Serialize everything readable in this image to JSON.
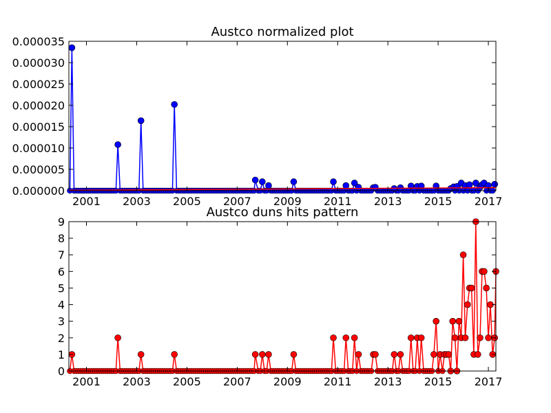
{
  "chart_data": [
    {
      "type": "line",
      "title": "Austco normalized plot",
      "xlabel": "",
      "ylabel": "",
      "xlim": [
        2000.3,
        2017.3
      ],
      "ylim": [
        0,
        3.5e-05
      ],
      "x_ticks": [
        "2001",
        "2003",
        "2005",
        "2007",
        "2009",
        "2011",
        "2013",
        "2015",
        "2017"
      ],
      "y_ticks": [
        "0.000000",
        "0.000005",
        "0.000010",
        "0.000015",
        "0.000020",
        "0.000025",
        "0.000030",
        "0.000035"
      ],
      "grid": false,
      "series": [
        {
          "color": "#0000ff",
          "marker": "circle",
          "points": [
            [
              2000.42,
              3.35e-05
            ],
            [
              2002.25,
              1.08e-05
            ],
            [
              2003.17,
              1.64e-05
            ],
            [
              2004.5,
              2.02e-05
            ],
            [
              2007.72,
              2.5e-06
            ],
            [
              2008.0,
              2.1e-06
            ],
            [
              2008.25,
              1.2e-06
            ],
            [
              2009.25,
              2.1e-06
            ],
            [
              2010.83,
              2.1e-06
            ],
            [
              2011.33,
              1.2e-06
            ],
            [
              2011.67,
              1.8e-06
            ],
            [
              2011.83,
              8e-07
            ],
            [
              2012.42,
              7e-07
            ],
            [
              2012.5,
              8e-07
            ],
            [
              2013.25,
              5e-07
            ],
            [
              2013.5,
              7e-07
            ],
            [
              2013.92,
              1.1e-06
            ],
            [
              2014.17,
              1e-06
            ],
            [
              2014.33,
              1.1e-06
            ],
            [
              2014.92,
              1.1e-06
            ],
            [
              2015.5,
              5e-07
            ],
            [
              2015.62,
              9e-07
            ],
            [
              2015.75,
              1e-06
            ],
            [
              2015.92,
              1.8e-06
            ],
            [
              2016.08,
              1.2e-06
            ],
            [
              2016.25,
              1.4e-06
            ],
            [
              2016.5,
              1.8e-06
            ],
            [
              2016.67,
              8e-07
            ],
            [
              2016.75,
              1.4e-06
            ],
            [
              2016.83,
              1.8e-06
            ],
            [
              2017.0,
              1.2e-06
            ],
            [
              2017.25,
              1.5e-06
            ]
          ]
        },
        {
          "color": "#ff0000",
          "marker": "none",
          "points": [
            [
              2000.3,
              1e-07
            ],
            [
              2017.3,
              7e-07
            ]
          ]
        }
      ]
    },
    {
      "type": "line",
      "title": "Austco duns hits pattern",
      "xlabel": "",
      "ylabel": "",
      "xlim": [
        2000.3,
        2017.3
      ],
      "ylim": [
        0,
        9
      ],
      "x_ticks": [
        "2001",
        "2003",
        "2005",
        "2007",
        "2009",
        "2011",
        "2013",
        "2015",
        "2017"
      ],
      "y_ticks": [
        "0",
        "1",
        "2",
        "3",
        "4",
        "5",
        "6",
        "7",
        "8",
        "9"
      ],
      "grid": false,
      "series": [
        {
          "color": "#ff0000",
          "marker": "circle",
          "points": [
            [
              2000.42,
              1
            ],
            [
              2002.25,
              2
            ],
            [
              2003.17,
              1
            ],
            [
              2004.5,
              1
            ],
            [
              2007.72,
              1
            ],
            [
              2008.0,
              1
            ],
            [
              2008.25,
              1
            ],
            [
              2009.25,
              1
            ],
            [
              2010.83,
              2
            ],
            [
              2011.33,
              2
            ],
            [
              2011.67,
              2
            ],
            [
              2011.83,
              1
            ],
            [
              2012.42,
              1
            ],
            [
              2012.5,
              1
            ],
            [
              2013.25,
              1
            ],
            [
              2013.5,
              1
            ],
            [
              2013.92,
              2
            ],
            [
              2014.17,
              2
            ],
            [
              2014.33,
              2
            ],
            [
              2014.83,
              1
            ],
            [
              2014.92,
              3
            ],
            [
              2015.08,
              1
            ],
            [
              2015.25,
              1
            ],
            [
              2015.33,
              1
            ],
            [
              2015.42,
              1
            ],
            [
              2015.5,
              0
            ],
            [
              2015.58,
              3
            ],
            [
              2015.67,
              2
            ],
            [
              2015.75,
              0
            ],
            [
              2015.83,
              3
            ],
            [
              2015.92,
              2
            ],
            [
              2016.0,
              7
            ],
            [
              2016.08,
              2
            ],
            [
              2016.17,
              4
            ],
            [
              2016.25,
              5
            ],
            [
              2016.33,
              5
            ],
            [
              2016.42,
              1
            ],
            [
              2016.5,
              9
            ],
            [
              2016.58,
              1
            ],
            [
              2016.67,
              2
            ],
            [
              2016.75,
              6
            ],
            [
              2016.83,
              6
            ],
            [
              2016.92,
              5
            ],
            [
              2017.0,
              2
            ],
            [
              2017.08,
              4
            ],
            [
              2017.17,
              1
            ],
            [
              2017.25,
              2
            ],
            [
              2017.3,
              6
            ]
          ]
        }
      ]
    }
  ]
}
